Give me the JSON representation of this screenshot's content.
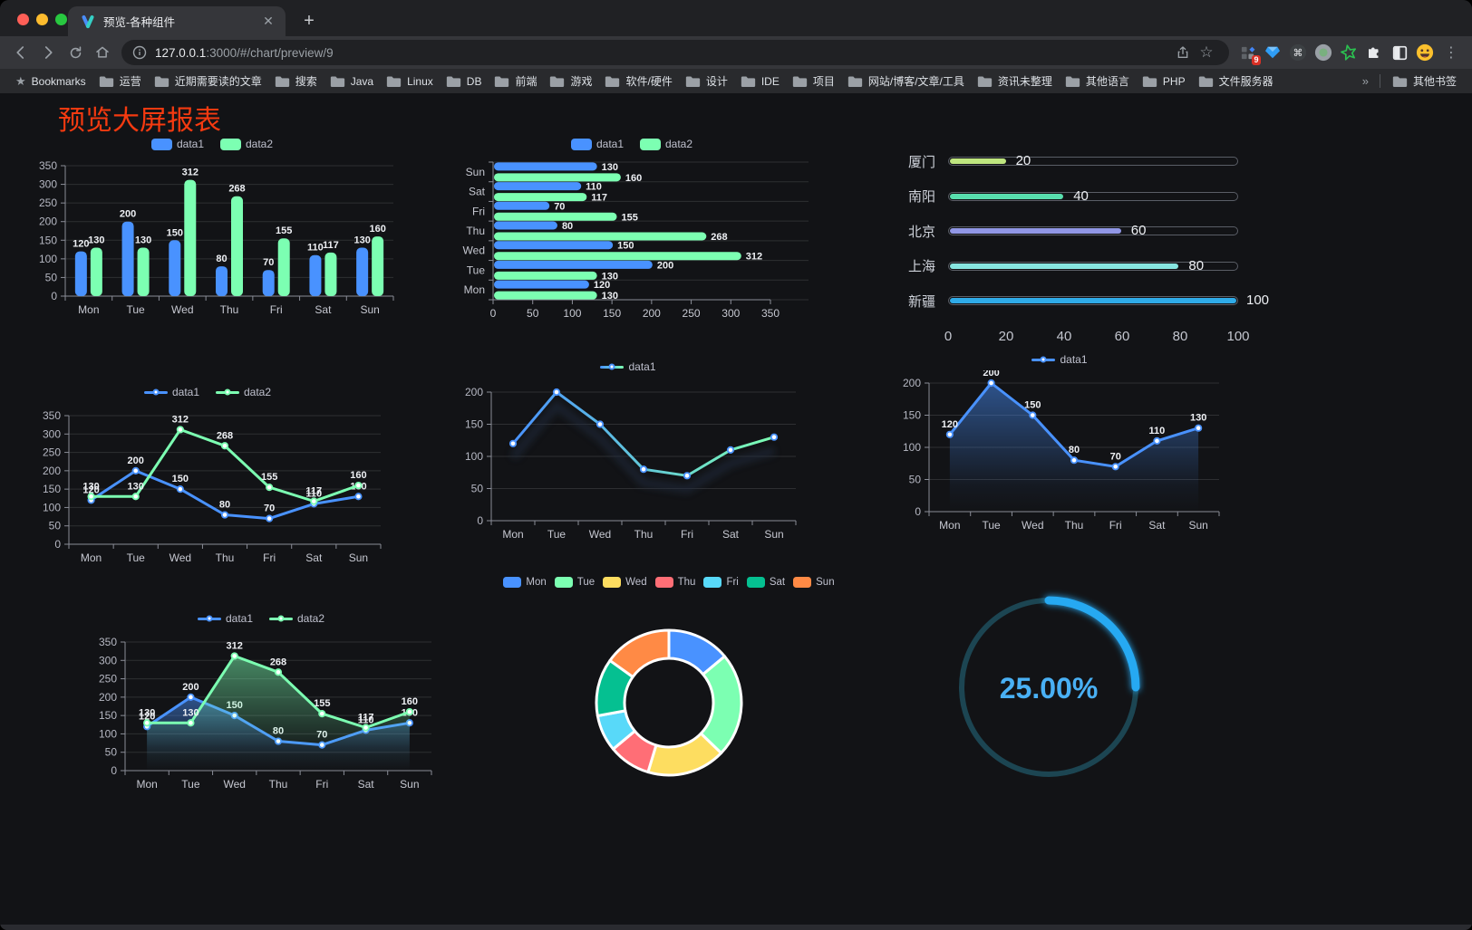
{
  "browser": {
    "tab_title": "预览-各种组件",
    "url_host": "127.0.0.1",
    "url_rest": ":3000/#/chart/preview/9",
    "bookmarks_root": "Bookmarks",
    "bookmark_folders": [
      "运营",
      "近期需要读的文章",
      "搜索",
      "Java",
      "Linux",
      "DB",
      "前端",
      "游戏",
      "软件/硬件",
      "设计",
      "IDE",
      "项目",
      "网站/博客/文章/工具",
      "资讯未整理",
      "其他语言",
      "PHP",
      "文件服务器"
    ],
    "other_bookmarks": "其他书签",
    "extensions_badge": "9"
  },
  "page": {
    "title": "预览大屏报表",
    "title_color": "#f53a10",
    "background": "#121316"
  },
  "chart_data": [
    {
      "id": "grouped-bar",
      "type": "bar",
      "categories": [
        "Mon",
        "Tue",
        "Wed",
        "Thu",
        "Fri",
        "Sat",
        "Sun"
      ],
      "series": [
        {
          "name": "data1",
          "color": "#4992ff",
          "values": [
            120,
            200,
            150,
            80,
            70,
            110,
            130
          ]
        },
        {
          "name": "data2",
          "color": "#7cffb2",
          "values": [
            130,
            130,
            312,
            268,
            155,
            117,
            160
          ]
        }
      ],
      "ylim": [
        0,
        350
      ],
      "ystep": 50,
      "labels": true,
      "legend_position": "top",
      "grid": true
    },
    {
      "id": "horizontal-bar",
      "type": "bar-horizontal",
      "categories": [
        "Mon",
        "Tue",
        "Wed",
        "Thu",
        "Fri",
        "Sat",
        "Sun"
      ],
      "series": [
        {
          "name": "data1",
          "color": "#4992ff",
          "values": [
            120,
            200,
            150,
            80,
            70,
            110,
            130
          ]
        },
        {
          "name": "data2",
          "color": "#7cffb2",
          "values": [
            130,
            130,
            312,
            268,
            155,
            117,
            160
          ]
        }
      ],
      "xlim": [
        0,
        350
      ],
      "xstep": 50,
      "labels": true,
      "legend_position": "top",
      "grid": true
    },
    {
      "id": "progress",
      "type": "progress-bars",
      "categories": [
        "厦门",
        "南阳",
        "北京",
        "上海",
        "新疆"
      ],
      "values": [
        20,
        40,
        60,
        80,
        100
      ],
      "colors": [
        "#bfe67f",
        "#58dfae",
        "#9197e6",
        "#87e5e0",
        "#2fabe8"
      ],
      "xlim": [
        0,
        100
      ],
      "xticks": [
        0,
        20,
        40,
        60,
        80,
        100
      ]
    },
    {
      "id": "dual-line",
      "type": "line",
      "categories": [
        "Mon",
        "Tue",
        "Wed",
        "Thu",
        "Fri",
        "Sat",
        "Sun"
      ],
      "series": [
        {
          "name": "data1",
          "color": "#4992ff",
          "values": [
            120,
            200,
            150,
            80,
            70,
            110,
            130
          ]
        },
        {
          "name": "data2",
          "color": "#7cffb2",
          "values": [
            130,
            130,
            312,
            268,
            155,
            117,
            160
          ]
        }
      ],
      "ylim": [
        0,
        350
      ],
      "ystep": 50,
      "labels": true,
      "legend_position": "top",
      "grid": true
    },
    {
      "id": "gradient-line",
      "type": "line",
      "categories": [
        "Mon",
        "Tue",
        "Wed",
        "Thu",
        "Fri",
        "Sat",
        "Sun"
      ],
      "series": [
        {
          "name": "data1",
          "gradient": [
            "#4992ff",
            "#7cffb2"
          ],
          "values": [
            120,
            200,
            150,
            80,
            70,
            110,
            130
          ]
        }
      ],
      "ylim": [
        0,
        200
      ],
      "ystep": 50,
      "labels": false,
      "legend_position": "top",
      "grid": true
    },
    {
      "id": "single-area",
      "type": "area",
      "categories": [
        "Mon",
        "Tue",
        "Wed",
        "Thu",
        "Fri",
        "Sat",
        "Sun"
      ],
      "series": [
        {
          "name": "data1",
          "color": "#4992ff",
          "values": [
            120,
            200,
            150,
            80,
            70,
            110,
            130
          ]
        }
      ],
      "ylim": [
        0,
        200
      ],
      "ystep": 50,
      "labels": true,
      "legend_position": "top",
      "grid": true
    },
    {
      "id": "dual-area",
      "type": "area",
      "categories": [
        "Mon",
        "Tue",
        "Wed",
        "Thu",
        "Fri",
        "Sat",
        "Sun"
      ],
      "series": [
        {
          "name": "data1",
          "color": "#4992ff",
          "values": [
            120,
            200,
            150,
            80,
            70,
            110,
            130
          ]
        },
        {
          "name": "data2",
          "color": "#7cffb2",
          "values": [
            130,
            130,
            312,
            268,
            155,
            117,
            160
          ]
        }
      ],
      "ylim": [
        0,
        350
      ],
      "ystep": 50,
      "labels": true,
      "legend_position": "top",
      "grid": true
    },
    {
      "id": "donut",
      "type": "pie",
      "categories": [
        "Mon",
        "Tue",
        "Wed",
        "Thu",
        "Fri",
        "Sat",
        "Sun"
      ],
      "values": [
        120,
        200,
        150,
        80,
        70,
        110,
        130
      ],
      "colors": [
        "#4992ff",
        "#7cffb2",
        "#fddd60",
        "#ff6e76",
        "#58d9f9",
        "#05c091",
        "#ff8a45"
      ],
      "inner_radius": 49,
      "outer_radius": 80,
      "border_color": "#ffffff",
      "legend_position": "top"
    },
    {
      "id": "gauge",
      "type": "gauge",
      "value": 25,
      "label": "25.00%",
      "color": "#28a9f2",
      "track_color": "#1c4552",
      "text_color": "#49b0f4"
    }
  ]
}
